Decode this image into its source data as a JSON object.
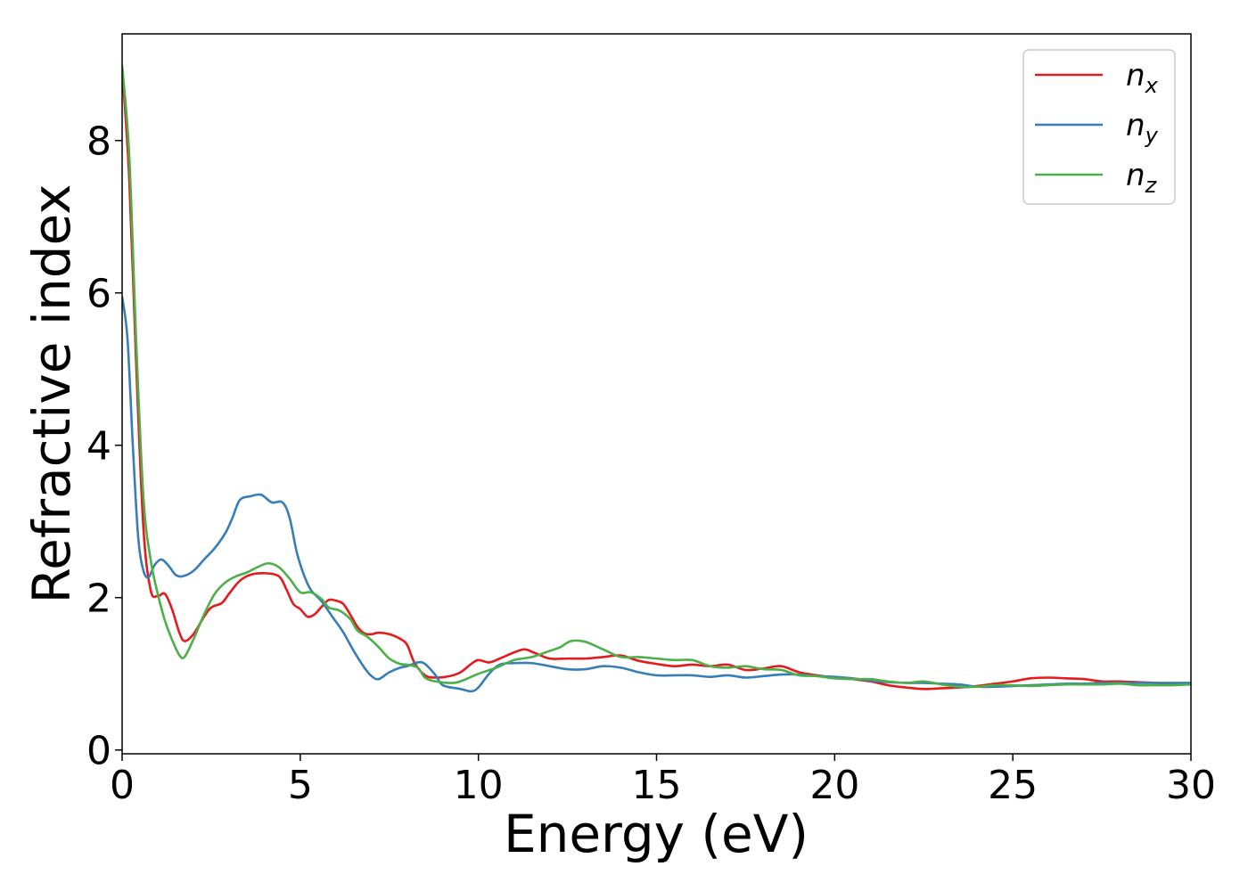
{
  "chart_data": {
    "type": "line",
    "title": "",
    "xlabel": "Energy (eV)",
    "ylabel": "Refractive index",
    "xlim": [
      0,
      30
    ],
    "ylim": [
      -0.05,
      9.4
    ],
    "xticks": [
      0,
      5,
      10,
      15,
      20,
      25,
      30
    ],
    "yticks": [
      0,
      2,
      4,
      6,
      8
    ],
    "grid": false,
    "legend": {
      "position": "top-right",
      "entries": [
        {
          "base": "n",
          "sub": "x"
        },
        {
          "base": "n",
          "sub": "y"
        },
        {
          "base": "n",
          "sub": "z"
        }
      ]
    },
    "colors": {
      "nx": "#e41a1c",
      "ny": "#377eb8",
      "nz": "#4daf4a"
    },
    "series": [
      {
        "name": "nx",
        "color": "#e41a1c",
        "points": [
          [
            0,
            8.95
          ],
          [
            0.2,
            7.5
          ],
          [
            0.4,
            5.0
          ],
          [
            0.6,
            2.9
          ],
          [
            0.8,
            2.1
          ],
          [
            1.0,
            2.02
          ],
          [
            1.2,
            2.05
          ],
          [
            1.4,
            1.85
          ],
          [
            1.6,
            1.55
          ],
          [
            1.75,
            1.43
          ],
          [
            2.0,
            1.52
          ],
          [
            2.3,
            1.75
          ],
          [
            2.5,
            1.87
          ],
          [
            2.8,
            1.93
          ],
          [
            3.0,
            2.05
          ],
          [
            3.3,
            2.22
          ],
          [
            3.6,
            2.3
          ],
          [
            4.0,
            2.32
          ],
          [
            4.4,
            2.28
          ],
          [
            4.6,
            2.12
          ],
          [
            4.8,
            1.92
          ],
          [
            5.0,
            1.85
          ],
          [
            5.2,
            1.75
          ],
          [
            5.4,
            1.78
          ],
          [
            5.6,
            1.88
          ],
          [
            5.8,
            1.97
          ],
          [
            6.0,
            1.96
          ],
          [
            6.2,
            1.92
          ],
          [
            6.4,
            1.78
          ],
          [
            6.6,
            1.62
          ],
          [
            6.8,
            1.53
          ],
          [
            7.0,
            1.52
          ],
          [
            7.2,
            1.54
          ],
          [
            7.5,
            1.52
          ],
          [
            7.8,
            1.46
          ],
          [
            8.0,
            1.38
          ],
          [
            8.2,
            1.15
          ],
          [
            8.5,
            0.98
          ],
          [
            8.8,
            0.95
          ],
          [
            9.2,
            0.97
          ],
          [
            9.5,
            1.02
          ],
          [
            9.8,
            1.13
          ],
          [
            10.0,
            1.18
          ],
          [
            10.3,
            1.15
          ],
          [
            10.6,
            1.2
          ],
          [
            11.0,
            1.28
          ],
          [
            11.3,
            1.32
          ],
          [
            11.6,
            1.27
          ],
          [
            12.0,
            1.2
          ],
          [
            12.5,
            1.2
          ],
          [
            13.0,
            1.2
          ],
          [
            13.5,
            1.22
          ],
          [
            14.0,
            1.24
          ],
          [
            14.5,
            1.17
          ],
          [
            15.0,
            1.13
          ],
          [
            15.5,
            1.1
          ],
          [
            16.0,
            1.12
          ],
          [
            16.5,
            1.1
          ],
          [
            17.0,
            1.12
          ],
          [
            17.5,
            1.05
          ],
          [
            18.0,
            1.07
          ],
          [
            18.5,
            1.1
          ],
          [
            19.0,
            1.02
          ],
          [
            19.5,
            0.98
          ],
          [
            20.0,
            0.95
          ],
          [
            20.5,
            0.93
          ],
          [
            21.0,
            0.9
          ],
          [
            21.5,
            0.85
          ],
          [
            22.0,
            0.82
          ],
          [
            22.5,
            0.8
          ],
          [
            23.0,
            0.81
          ],
          [
            23.5,
            0.82
          ],
          [
            24.0,
            0.84
          ],
          [
            24.5,
            0.87
          ],
          [
            25.0,
            0.9
          ],
          [
            25.5,
            0.94
          ],
          [
            26.0,
            0.95
          ],
          [
            26.5,
            0.94
          ],
          [
            27.0,
            0.93
          ],
          [
            27.5,
            0.9
          ],
          [
            28.0,
            0.9
          ],
          [
            28.5,
            0.89
          ],
          [
            29.0,
            0.88
          ],
          [
            29.5,
            0.87
          ],
          [
            30.0,
            0.87
          ]
        ]
      },
      {
        "name": "ny",
        "color": "#377eb8",
        "points": [
          [
            0,
            5.95
          ],
          [
            0.15,
            5.4
          ],
          [
            0.3,
            4.0
          ],
          [
            0.45,
            2.8
          ],
          [
            0.6,
            2.35
          ],
          [
            0.75,
            2.27
          ],
          [
            0.9,
            2.42
          ],
          [
            1.1,
            2.5
          ],
          [
            1.3,
            2.42
          ],
          [
            1.5,
            2.3
          ],
          [
            1.7,
            2.28
          ],
          [
            2.0,
            2.35
          ],
          [
            2.3,
            2.5
          ],
          [
            2.6,
            2.65
          ],
          [
            2.9,
            2.85
          ],
          [
            3.1,
            3.05
          ],
          [
            3.3,
            3.28
          ],
          [
            3.6,
            3.33
          ],
          [
            3.9,
            3.35
          ],
          [
            4.2,
            3.25
          ],
          [
            4.5,
            3.25
          ],
          [
            4.7,
            3.05
          ],
          [
            4.9,
            2.6
          ],
          [
            5.1,
            2.3
          ],
          [
            5.3,
            2.1
          ],
          [
            5.6,
            1.95
          ],
          [
            5.9,
            1.75
          ],
          [
            6.2,
            1.55
          ],
          [
            6.5,
            1.3
          ],
          [
            6.8,
            1.08
          ],
          [
            7.0,
            0.97
          ],
          [
            7.2,
            0.93
          ],
          [
            7.5,
            1.02
          ],
          [
            7.8,
            1.08
          ],
          [
            8.0,
            1.1
          ],
          [
            8.3,
            1.15
          ],
          [
            8.5,
            1.13
          ],
          [
            8.8,
            0.98
          ],
          [
            9.0,
            0.85
          ],
          [
            9.5,
            0.8
          ],
          [
            9.8,
            0.77
          ],
          [
            10.0,
            0.82
          ],
          [
            10.3,
            1.0
          ],
          [
            10.6,
            1.12
          ],
          [
            11.0,
            1.14
          ],
          [
            11.5,
            1.14
          ],
          [
            12.0,
            1.1
          ],
          [
            12.5,
            1.06
          ],
          [
            13.0,
            1.06
          ],
          [
            13.5,
            1.1
          ],
          [
            14.0,
            1.08
          ],
          [
            14.5,
            1.02
          ],
          [
            15.0,
            0.98
          ],
          [
            15.5,
            0.98
          ],
          [
            16.0,
            0.98
          ],
          [
            16.5,
            0.96
          ],
          [
            17.0,
            0.98
          ],
          [
            17.5,
            0.95
          ],
          [
            18.0,
            0.97
          ],
          [
            18.5,
            0.99
          ],
          [
            19.0,
            0.99
          ],
          [
            19.5,
            0.97
          ],
          [
            20.0,
            0.96
          ],
          [
            20.5,
            0.94
          ],
          [
            21.0,
            0.91
          ],
          [
            21.5,
            0.89
          ],
          [
            22.0,
            0.88
          ],
          [
            22.5,
            0.88
          ],
          [
            23.0,
            0.87
          ],
          [
            23.5,
            0.86
          ],
          [
            24.0,
            0.83
          ],
          [
            24.5,
            0.83
          ],
          [
            25.0,
            0.84
          ],
          [
            25.5,
            0.85
          ],
          [
            26.0,
            0.86
          ],
          [
            26.5,
            0.87
          ],
          [
            27.0,
            0.87
          ],
          [
            27.5,
            0.88
          ],
          [
            28.0,
            0.88
          ],
          [
            28.5,
            0.88
          ],
          [
            29.0,
            0.88
          ],
          [
            29.5,
            0.88
          ],
          [
            30.0,
            0.88
          ]
        ]
      },
      {
        "name": "nz",
        "color": "#4daf4a",
        "points": [
          [
            0,
            8.98
          ],
          [
            0.2,
            7.8
          ],
          [
            0.4,
            5.3
          ],
          [
            0.6,
            3.3
          ],
          [
            0.8,
            2.5
          ],
          [
            1.0,
            2.05
          ],
          [
            1.2,
            1.7
          ],
          [
            1.4,
            1.45
          ],
          [
            1.6,
            1.25
          ],
          [
            1.75,
            1.22
          ],
          [
            2.0,
            1.45
          ],
          [
            2.3,
            1.78
          ],
          [
            2.6,
            2.05
          ],
          [
            2.9,
            2.2
          ],
          [
            3.2,
            2.28
          ],
          [
            3.5,
            2.33
          ],
          [
            3.8,
            2.4
          ],
          [
            4.1,
            2.45
          ],
          [
            4.4,
            2.4
          ],
          [
            4.7,
            2.25
          ],
          [
            5.0,
            2.07
          ],
          [
            5.3,
            2.07
          ],
          [
            5.6,
            1.98
          ],
          [
            5.8,
            1.87
          ],
          [
            6.1,
            1.83
          ],
          [
            6.4,
            1.72
          ],
          [
            6.6,
            1.57
          ],
          [
            6.9,
            1.48
          ],
          [
            7.2,
            1.35
          ],
          [
            7.5,
            1.2
          ],
          [
            7.8,
            1.13
          ],
          [
            8.0,
            1.12
          ],
          [
            8.3,
            1.08
          ],
          [
            8.5,
            0.95
          ],
          [
            8.8,
            0.9
          ],
          [
            9.3,
            0.88
          ],
          [
            9.6,
            0.92
          ],
          [
            10.0,
            1.0
          ],
          [
            10.5,
            1.08
          ],
          [
            11.0,
            1.18
          ],
          [
            11.5,
            1.22
          ],
          [
            12.0,
            1.3
          ],
          [
            12.3,
            1.35
          ],
          [
            12.6,
            1.43
          ],
          [
            13.0,
            1.42
          ],
          [
            13.5,
            1.32
          ],
          [
            14.0,
            1.22
          ],
          [
            14.5,
            1.22
          ],
          [
            15.0,
            1.2
          ],
          [
            15.5,
            1.18
          ],
          [
            16.0,
            1.18
          ],
          [
            16.5,
            1.1
          ],
          [
            17.0,
            1.08
          ],
          [
            17.5,
            1.1
          ],
          [
            18.0,
            1.06
          ],
          [
            18.5,
            1.05
          ],
          [
            19.0,
            0.98
          ],
          [
            19.5,
            0.97
          ],
          [
            20.0,
            0.94
          ],
          [
            20.5,
            0.93
          ],
          [
            21.0,
            0.93
          ],
          [
            21.5,
            0.9
          ],
          [
            22.0,
            0.88
          ],
          [
            22.5,
            0.9
          ],
          [
            23.0,
            0.86
          ],
          [
            23.5,
            0.83
          ],
          [
            24.0,
            0.83
          ],
          [
            24.5,
            0.85
          ],
          [
            25.0,
            0.85
          ],
          [
            25.5,
            0.84
          ],
          [
            26.0,
            0.85
          ],
          [
            26.5,
            0.86
          ],
          [
            27.0,
            0.86
          ],
          [
            27.5,
            0.86
          ],
          [
            28.0,
            0.87
          ],
          [
            28.5,
            0.85
          ],
          [
            29.0,
            0.85
          ],
          [
            29.5,
            0.85
          ],
          [
            30.0,
            0.86
          ]
        ]
      }
    ]
  }
}
